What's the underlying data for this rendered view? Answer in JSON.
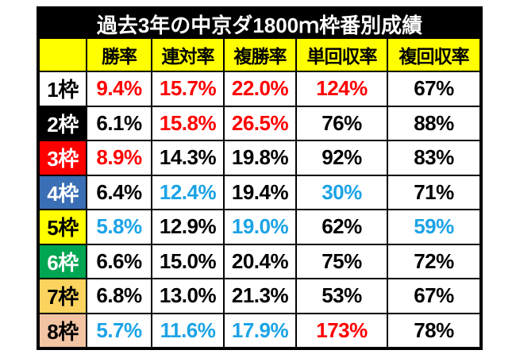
{
  "title": "過去3年の中京ダ1800ｍ枠番別成績",
  "colors": {
    "title_bg": "#000000",
    "title_text": "#ffffff",
    "header_bg": "#ffff00",
    "header_text": "#000000",
    "grid_line": "#000000",
    "cell_bg": "#ffffff",
    "red_text": "#ff0000",
    "blue_text": "#1ca3e6",
    "black_text": "#000000"
  },
  "table": {
    "corner_label": "",
    "columns": [
      "勝率",
      "連対率",
      "複勝率",
      "単回収率",
      "複回収率"
    ],
    "rows": [
      {
        "label": "1枠",
        "label_bg": "#ffffff",
        "label_color": "#000000",
        "cells": [
          {
            "text": "9.4%",
            "color": "red"
          },
          {
            "text": "15.7%",
            "color": "red"
          },
          {
            "text": "22.0%",
            "color": "red"
          },
          {
            "text": "124%",
            "color": "red"
          },
          {
            "text": "67%",
            "color": "black"
          }
        ]
      },
      {
        "label": "2枠",
        "label_bg": "#000000",
        "label_color": "#ffffff",
        "cells": [
          {
            "text": "6.1%",
            "color": "black"
          },
          {
            "text": "15.8%",
            "color": "red"
          },
          {
            "text": "26.5%",
            "color": "red"
          },
          {
            "text": "76%",
            "color": "black"
          },
          {
            "text": "88%",
            "color": "black"
          }
        ]
      },
      {
        "label": "3枠",
        "label_bg": "#ff0000",
        "label_color": "#ffffff",
        "cells": [
          {
            "text": "8.9%",
            "color": "red"
          },
          {
            "text": "14.3%",
            "color": "black"
          },
          {
            "text": "19.8%",
            "color": "black"
          },
          {
            "text": "92%",
            "color": "black"
          },
          {
            "text": "83%",
            "color": "black"
          }
        ]
      },
      {
        "label": "4枠",
        "label_bg": "#3a6eb5",
        "label_color": "#ffffff",
        "cells": [
          {
            "text": "6.4%",
            "color": "black"
          },
          {
            "text": "12.4%",
            "color": "blue"
          },
          {
            "text": "19.4%",
            "color": "black"
          },
          {
            "text": "30%",
            "color": "blue"
          },
          {
            "text": "71%",
            "color": "black"
          }
        ]
      },
      {
        "label": "5枠",
        "label_bg": "#ffff00",
        "label_color": "#000000",
        "cells": [
          {
            "text": "5.8%",
            "color": "blue"
          },
          {
            "text": "12.9%",
            "color": "black"
          },
          {
            "text": "19.0%",
            "color": "blue"
          },
          {
            "text": "62%",
            "color": "black"
          },
          {
            "text": "59%",
            "color": "blue"
          }
        ]
      },
      {
        "label": "6枠",
        "label_bg": "#00a651",
        "label_color": "#ffffff",
        "cells": [
          {
            "text": "6.6%",
            "color": "black"
          },
          {
            "text": "15.0%",
            "color": "black"
          },
          {
            "text": "20.4%",
            "color": "black"
          },
          {
            "text": "75%",
            "color": "black"
          },
          {
            "text": "72%",
            "color": "black"
          }
        ]
      },
      {
        "label": "7枠",
        "label_bg": "#fbd35e",
        "label_color": "#000000",
        "cells": [
          {
            "text": "6.8%",
            "color": "black"
          },
          {
            "text": "13.0%",
            "color": "black"
          },
          {
            "text": "21.3%",
            "color": "black"
          },
          {
            "text": "53%",
            "color": "black"
          },
          {
            "text": "67%",
            "color": "black"
          }
        ]
      },
      {
        "label": "8枠",
        "label_bg": "#f3c4a4",
        "label_color": "#000000",
        "cells": [
          {
            "text": "5.7%",
            "color": "blue"
          },
          {
            "text": "11.6%",
            "color": "blue"
          },
          {
            "text": "17.9%",
            "color": "blue"
          },
          {
            "text": "173%",
            "color": "red"
          },
          {
            "text": "78%",
            "color": "black"
          }
        ]
      }
    ]
  },
  "chart_data": {
    "type": "table",
    "title": "過去3年の中京ダ1800ｍ枠番別成績",
    "columns": [
      "枠",
      "勝率",
      "連対率",
      "複勝率",
      "単回収率",
      "複回収率"
    ],
    "rows": [
      [
        "1枠",
        "9.4%",
        "15.7%",
        "22.0%",
        "124%",
        "67%"
      ],
      [
        "2枠",
        "6.1%",
        "15.8%",
        "26.5%",
        "76%",
        "88%"
      ],
      [
        "3枠",
        "8.9%",
        "14.3%",
        "19.8%",
        "92%",
        "83%"
      ],
      [
        "4枠",
        "6.4%",
        "12.4%",
        "19.4%",
        "30%",
        "71%"
      ],
      [
        "5枠",
        "5.8%",
        "12.9%",
        "19.0%",
        "62%",
        "59%"
      ],
      [
        "6枠",
        "6.6%",
        "15.0%",
        "20.4%",
        "75%",
        "72%"
      ],
      [
        "7枠",
        "6.8%",
        "13.0%",
        "21.3%",
        "53%",
        "67%"
      ],
      [
        "8枠",
        "5.7%",
        "11.6%",
        "17.9%",
        "173%",
        "78%"
      ]
    ],
    "legend_notes": "red text = notably high value, light-blue text = notably low value; row label colors follow JRA bracket colors (1 white, 2 black, 3 red, 4 blue, 5 yellow, 6 green, 7 orange, 8 pink)"
  }
}
